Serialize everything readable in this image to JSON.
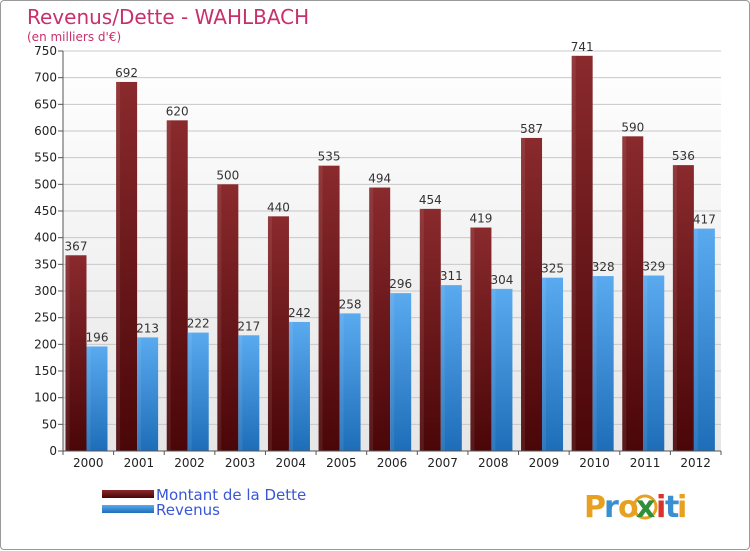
{
  "chart_data": {
    "type": "bar",
    "title": "Revenus/Dette - WAHLBACH",
    "subtitle": "(en milliers d'€)",
    "categories": [
      "2000",
      "2001",
      "2002",
      "2003",
      "2004",
      "2005",
      "2006",
      "2007",
      "2008",
      "2009",
      "2010",
      "2011",
      "2012"
    ],
    "series": [
      {
        "name": "Montant de la Dette",
        "color": "#6b1a1e",
        "values": [
          367,
          692,
          620,
          500,
          440,
          535,
          494,
          454,
          419,
          587,
          741,
          590,
          536
        ]
      },
      {
        "name": "Revenus",
        "color": "#3d8fd8",
        "values": [
          196,
          213,
          222,
          217,
          242,
          258,
          296,
          311,
          304,
          325,
          328,
          329,
          417
        ]
      }
    ],
    "ylim": [
      0,
      750
    ],
    "yticks": [
      0,
      50,
      100,
      150,
      200,
      250,
      300,
      350,
      400,
      450,
      500,
      550,
      600,
      650,
      700,
      750
    ],
    "grid": true,
    "legend_position": "bottom-left"
  },
  "logo": {
    "letters": [
      "P",
      "r",
      "o",
      "x",
      "i",
      "t",
      "i"
    ],
    "colors": [
      "#e8a020",
      "#3a8fd0",
      "#e8a020",
      "#2f8f3a",
      "#d8322a",
      "#3a8fd0",
      "#e8a020"
    ],
    "x_ring_color": "#e8a020"
  }
}
